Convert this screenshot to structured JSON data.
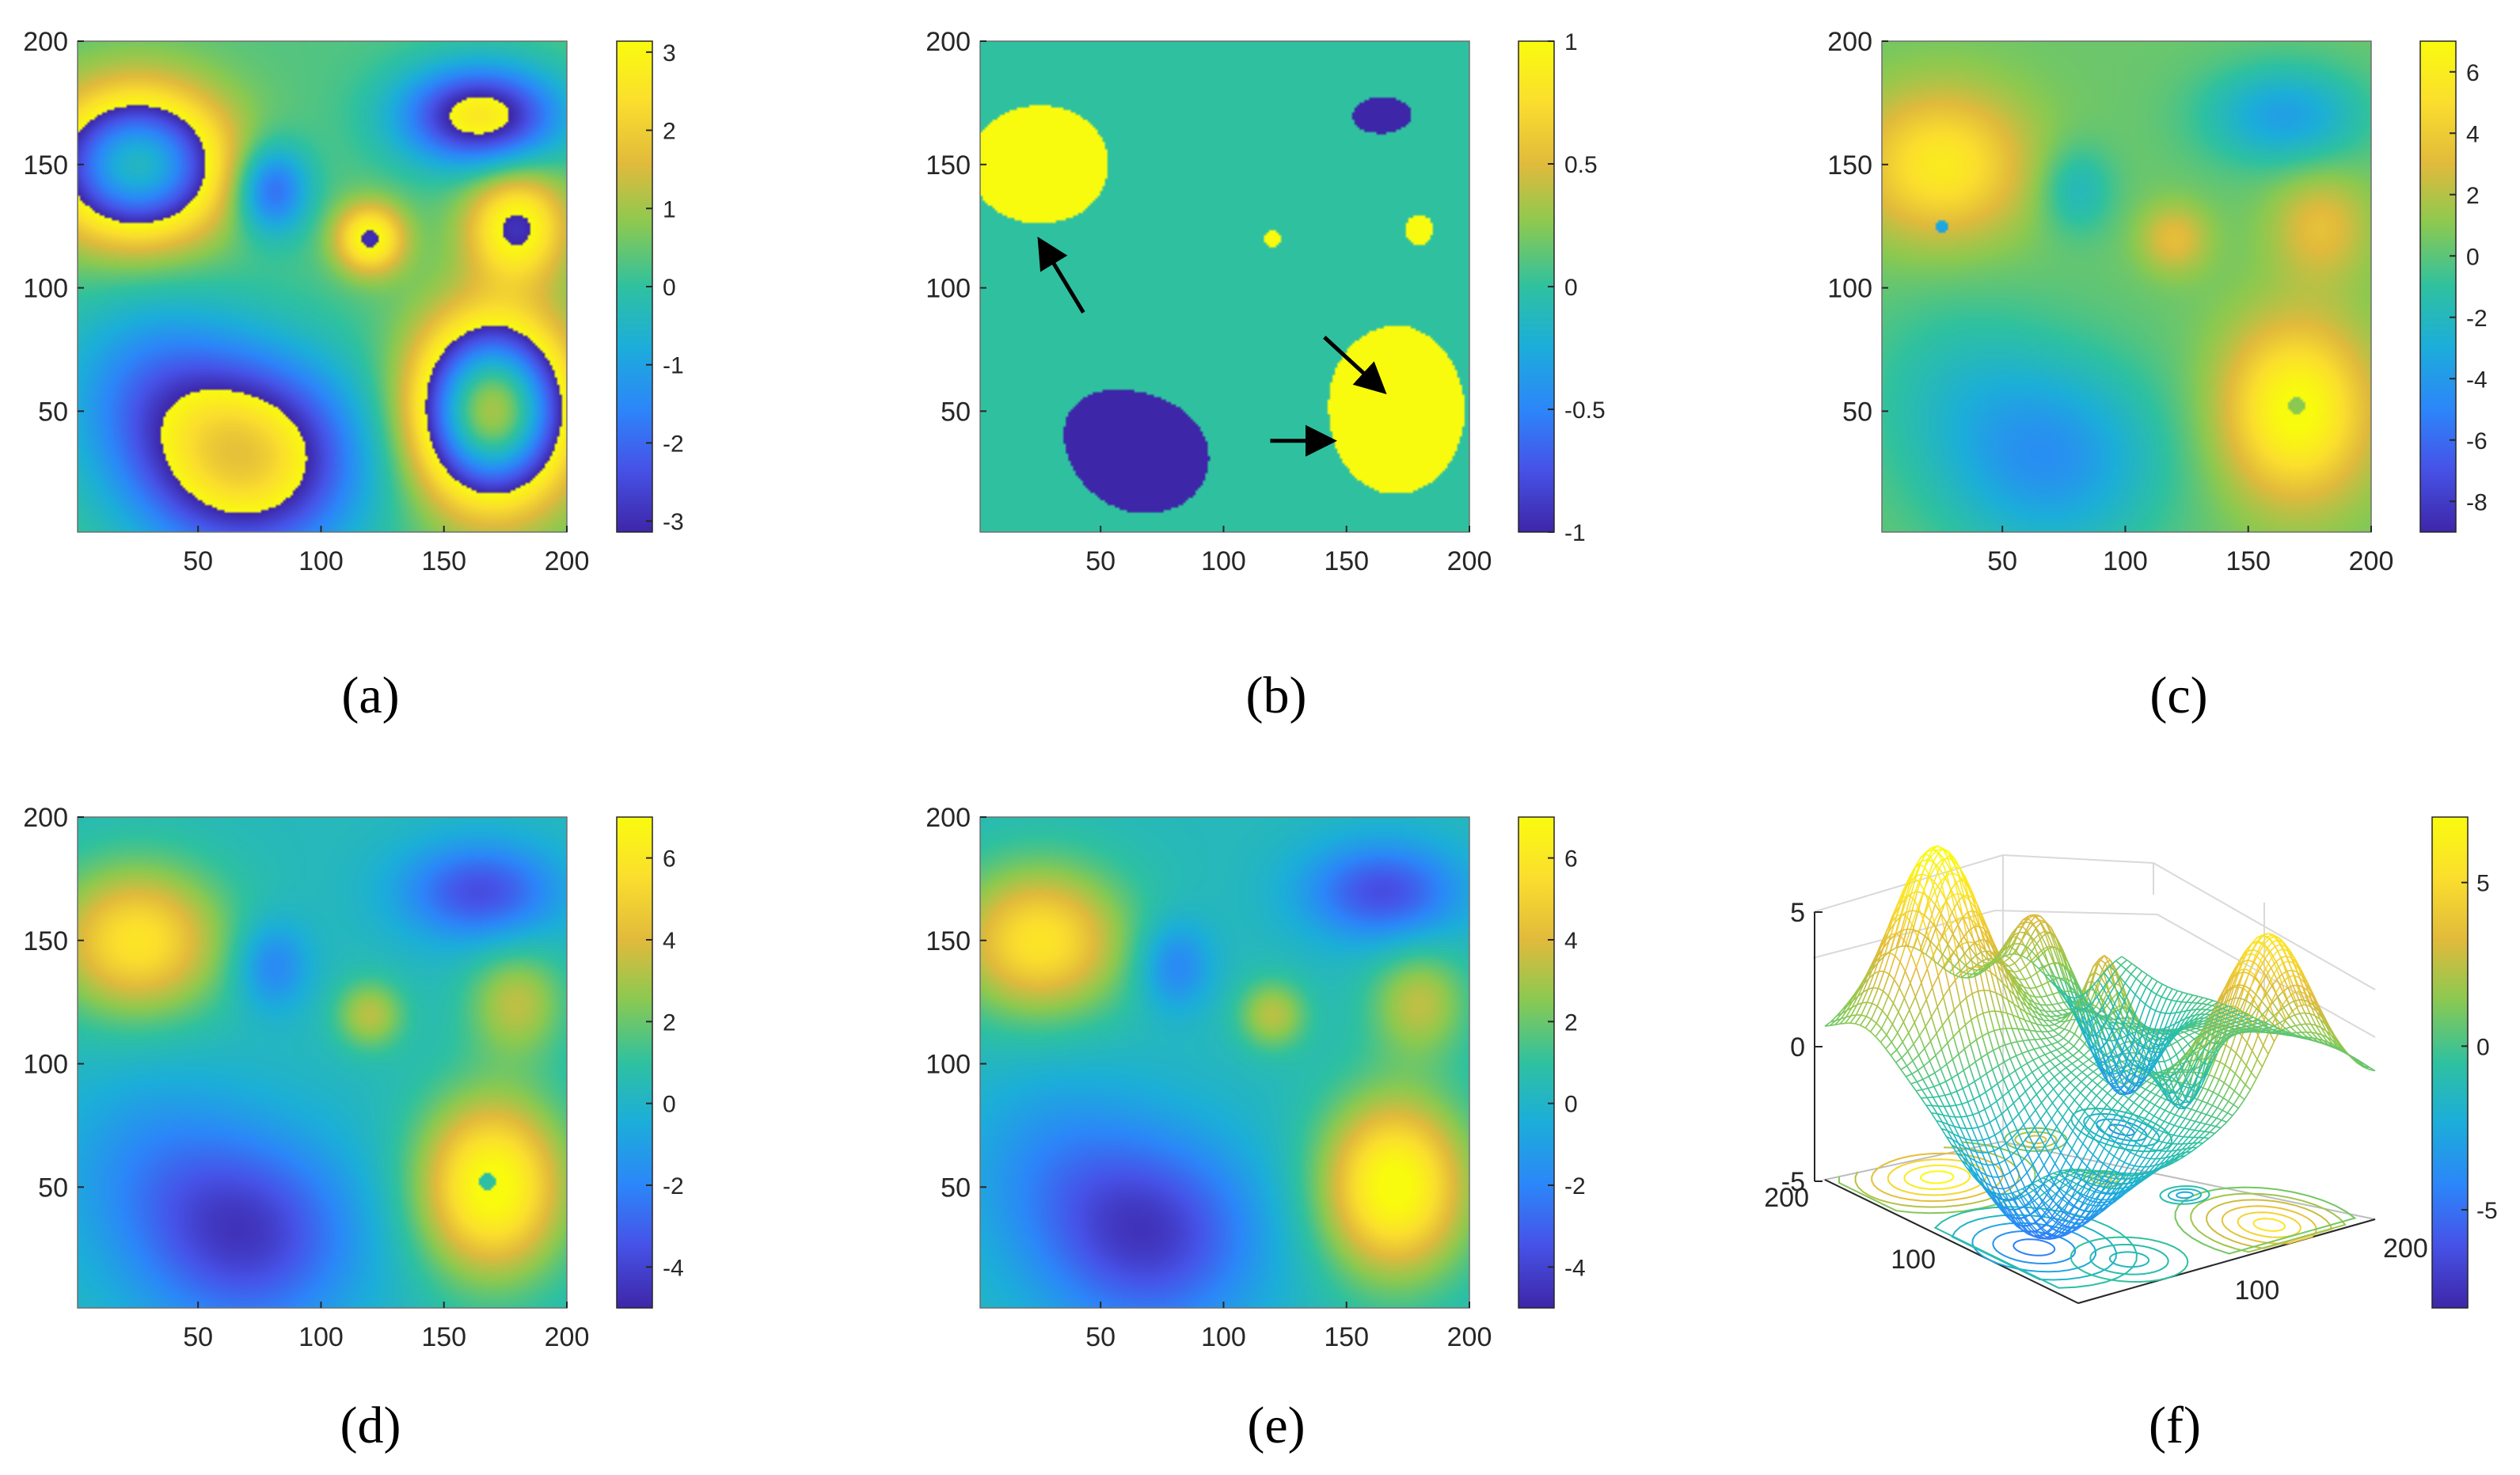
{
  "colors": {
    "c0": "#3e26a8",
    "c1": "#4653e8",
    "c2": "#2c86f9",
    "c3": "#1caed9",
    "c4": "#2fc19f",
    "c5": "#8cc950",
    "c6": "#e1ba3c",
    "c7": "#fbdf2d",
    "c8": "#f9fb0e",
    "arrow": "#000000",
    "background": "#ffffff"
  },
  "chart_data": [
    {
      "id": "a",
      "type": "heatmap",
      "caption": "(a)",
      "xlim": [
        1,
        200
      ],
      "ylim": [
        1,
        200
      ],
      "xticks": [
        "50",
        "100",
        "150",
        "200"
      ],
      "yticks": [
        "50",
        "100",
        "150",
        "200"
      ],
      "clim": [
        -3.14,
        3.14
      ],
      "colorbar_ticks": [
        "3",
        "2",
        "1",
        "0",
        "-1",
        "-2",
        "-3"
      ],
      "description": "wrapped phase"
    },
    {
      "id": "b",
      "type": "heatmap",
      "caption": "(b)",
      "xlim": [
        1,
        200
      ],
      "ylim": [
        1,
        200
      ],
      "xticks": [
        "50",
        "100",
        "150",
        "200"
      ],
      "yticks": [
        "50",
        "100",
        "150",
        "200"
      ],
      "clim": [
        -1,
        1
      ],
      "colorbar_ticks": [
        "1",
        "0.5",
        "0",
        "-0.5",
        "-1"
      ],
      "description": "phase jump count map",
      "arrows": [
        {
          "from": [
            43,
            90
          ],
          "to": [
            26,
            118
          ]
        },
        {
          "from": [
            141,
            80
          ],
          "to": [
            164,
            59
          ]
        },
        {
          "from": [
            119,
            38
          ],
          "to": [
            143,
            38
          ]
        }
      ]
    },
    {
      "id": "c",
      "type": "heatmap",
      "caption": "(c)",
      "xlim": [
        1,
        200
      ],
      "ylim": [
        1,
        200
      ],
      "xticks": [
        "50",
        "100",
        "150",
        "200"
      ],
      "yticks": [
        "50",
        "100",
        "150",
        "200"
      ],
      "clim": [
        -9,
        7
      ],
      "colorbar_ticks": [
        "6",
        "4",
        "2",
        "0",
        "-2",
        "-4",
        "-6",
        "-8"
      ],
      "description": "unwrapped phase with errors"
    },
    {
      "id": "d",
      "type": "heatmap",
      "caption": "(d)",
      "xlim": [
        1,
        200
      ],
      "ylim": [
        1,
        200
      ],
      "xticks": [
        "50",
        "100",
        "150",
        "200"
      ],
      "yticks": [
        "50",
        "100",
        "150",
        "200"
      ],
      "clim": [
        -5,
        7
      ],
      "colorbar_ticks": [
        "6",
        "4",
        "2",
        "0",
        "-2",
        "-4"
      ],
      "description": "partially corrected unwrapped phase"
    },
    {
      "id": "e",
      "type": "heatmap",
      "caption": "(e)",
      "xlim": [
        1,
        200
      ],
      "ylim": [
        1,
        200
      ],
      "xticks": [
        "50",
        "100",
        "150",
        "200"
      ],
      "yticks": [
        "50",
        "100",
        "150",
        "200"
      ],
      "clim": [
        -5,
        7
      ],
      "colorbar_ticks": [
        "6",
        "4",
        "2",
        "0",
        "-2",
        "-4"
      ],
      "description": "correct unwrapped phase"
    },
    {
      "id": "f",
      "type": "surface",
      "caption": "(f)",
      "zlim": [
        -5,
        7
      ],
      "zticks": [
        "5",
        "0",
        "-5"
      ],
      "xticks": [
        "200",
        "100"
      ],
      "yticks": [
        "100",
        "200"
      ],
      "clim": [
        -8,
        7
      ],
      "colorbar_ticks": [
        "5",
        "0",
        "-5"
      ],
      "description": "3-D mesh of unwrapped phase with contour projection"
    }
  ]
}
